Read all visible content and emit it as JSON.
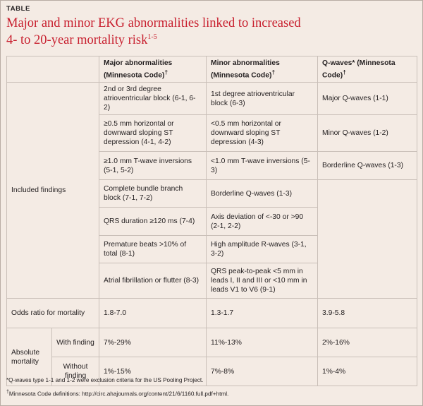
{
  "label": "TABLE",
  "title": {
    "line1": "Major and minor EKG abnormalities linked to increased",
    "line2": "4- to 20-year mortality risk",
    "superscript": "1-5"
  },
  "headers": {
    "major": "Major abnormalities (Minnesota Code)",
    "minor": "Minor abnormalities (Minnesota Code)",
    "qwaves": "Q-waves* (Minnesota Code)",
    "dagger": "†"
  },
  "included_label": "Included findings",
  "findings": [
    {
      "major": "2nd or 3rd degree atrioventricular block (6-1, 6-2)",
      "minor": "1st degree atrioventricular block (6-3)",
      "q": "Major Q-waves (1-1)"
    },
    {
      "major": "≥0.5 mm horizontal or downward sloping ST depression (4-1, 4-2)",
      "minor": "<0.5 mm horizontal or downward sloping ST depression (4-3)",
      "q": "Minor Q-waves (1-2)"
    },
    {
      "major": "≥1.0 mm T-wave inversions (5-1, 5-2)",
      "minor": "<1.0 mm T-wave inversions (5-3)",
      "q": "Borderline Q-waves (1-3)"
    },
    {
      "major": "Complete bundle branch block (7-1, 7-2)",
      "minor": "Borderline Q-waves (1-3)"
    },
    {
      "major": "QRS duration ≥120 ms (7-4)",
      "minor": "Axis deviation of <-30 or >90 (2-1, 2-2)"
    },
    {
      "major": "Premature beats >10% of total (8-1)",
      "minor": "High amplitude R-waves (3-1, 3-2)"
    },
    {
      "major": "Atrial fibrillation or flutter (8-3)",
      "minor": "QRS peak-to-peak <5 mm in leads I, II and III or <10 mm in leads V1 to V6 (9-1)"
    }
  ],
  "odds": {
    "label": "Odds ratio for mortality",
    "major": "1.8-7.0",
    "minor": "1.3-1.7",
    "q": "3.9-5.8"
  },
  "absolute": {
    "label": "Absolute mortality",
    "with": {
      "label": "With finding",
      "major": "7%-29%",
      "minor": "11%-13%",
      "q": "2%-16%"
    },
    "without": {
      "label": "Without finding",
      "major": "1%-15%",
      "minor": "7%-8%",
      "q": "1%-4%"
    }
  },
  "footnotes": {
    "asterisk": "*Q-waves type 1-1 and 1-2 were exclusion criteria for the US Pooling Project.",
    "dagger_mark": "†",
    "dagger": "Minnesota Code definitions: http://circ.ahajournals.org/content/21/6/1160.full.pdf+html."
  }
}
